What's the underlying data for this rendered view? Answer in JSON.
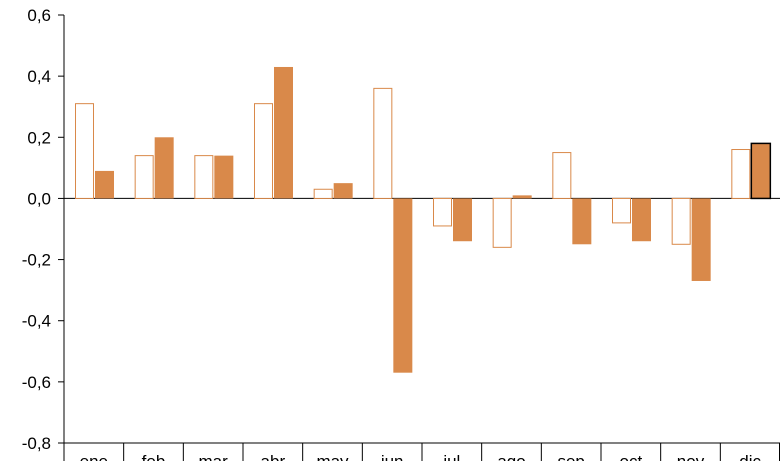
{
  "chart_data": {
    "type": "bar",
    "categories": [
      "ene",
      "feb",
      "mar",
      "abr",
      "may",
      "jun",
      "jul",
      "ago",
      "sep",
      "oct",
      "nov",
      "dic"
    ],
    "series": [
      {
        "values": [
          0.31,
          0.14,
          0.14,
          0.31,
          0.03,
          0.36,
          -0.09,
          -0.16,
          0.15,
          -0.08,
          -0.15,
          0.16
        ]
      },
      {
        "values": [
          0.09,
          0.2,
          0.14,
          0.43,
          0.05,
          -0.57,
          -0.14,
          0.01,
          -0.15,
          -0.14,
          -0.27,
          0.18
        ]
      }
    ],
    "ylim": [
      -0.8,
      0.6
    ],
    "yticks": [
      "0,6",
      "0,4",
      "0,2",
      "0,0",
      "-0,2",
      "-0,4",
      "-0,6",
      "-0,8"
    ],
    "colors": {
      "series_a_outline": "#D9894A",
      "series_a_fill": "#ffffff",
      "series_b_fill": "#D9894A",
      "highlight_outline": "#000000",
      "axis": "#000000"
    },
    "title": "",
    "xlabel": "",
    "ylabel": "",
    "legend": "none",
    "grid": false
  }
}
